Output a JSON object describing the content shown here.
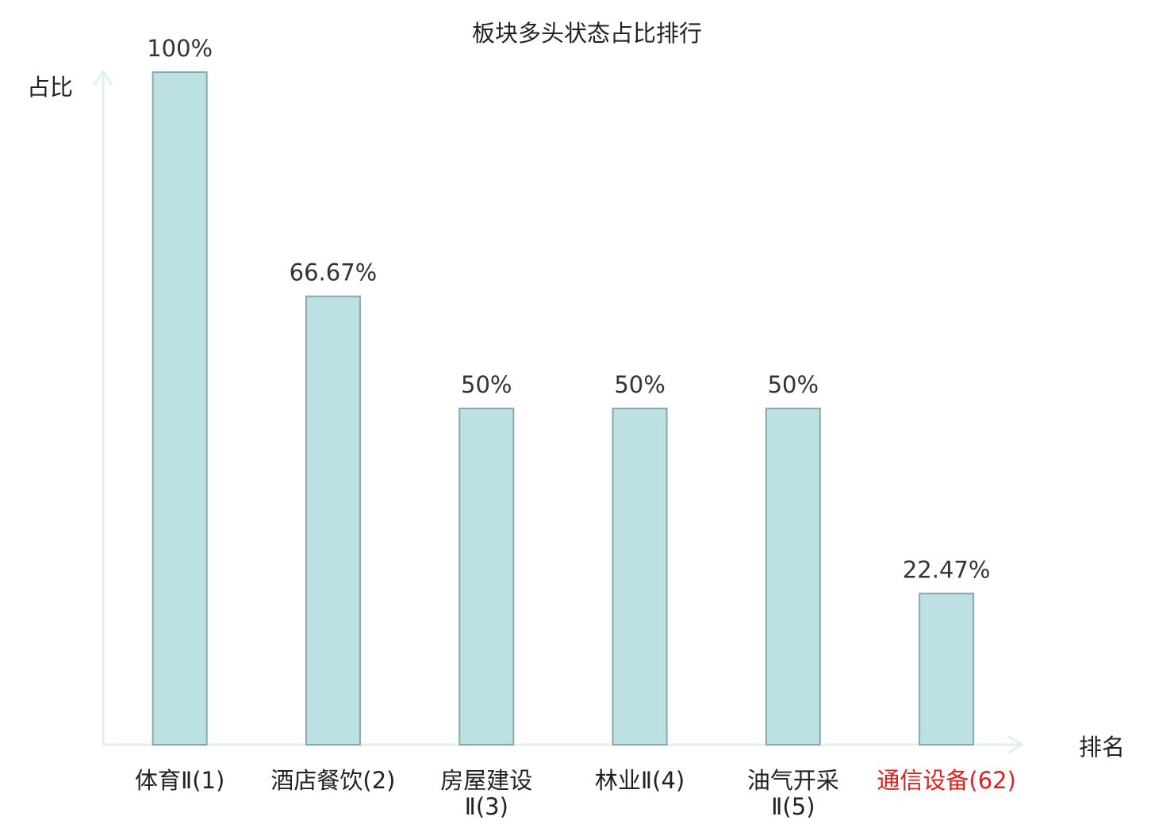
{
  "chart_data": {
    "type": "bar",
    "title": "板块多头状态占比排行",
    "ylabel": "占比",
    "xlabel": "排名",
    "categories": [
      {
        "name": "体育Ⅱ",
        "rank": "(1)",
        "lines": [
          "体育Ⅱ(1)"
        ],
        "highlight": false
      },
      {
        "name": "酒店餐饮",
        "rank": "(2)",
        "lines": [
          "酒店餐饮(2)"
        ],
        "highlight": false
      },
      {
        "name": "房屋建设Ⅱ",
        "rank": "(3)",
        "lines": [
          "房屋建设",
          "Ⅱ(3)"
        ],
        "highlight": false
      },
      {
        "name": "林业Ⅱ",
        "rank": "(4)",
        "lines": [
          "林业Ⅱ(4)"
        ],
        "highlight": false
      },
      {
        "name": "油气开采Ⅱ",
        "rank": "(5)",
        "lines": [
          "油气开采",
          "Ⅱ(5)"
        ],
        "highlight": false
      },
      {
        "name": "通信设备",
        "rank": "(62)",
        "lines": [
          "通信设备(62)"
        ],
        "highlight": true
      }
    ],
    "values": [
      100,
      66.67,
      50,
      50,
      50,
      22.47
    ],
    "value_labels": [
      "100%",
      "66.67%",
      "50%",
      "50%",
      "50%",
      "22.47%"
    ],
    "ylim": [
      0,
      100
    ],
    "grid": false,
    "colors": {
      "bar_fill": "#bde0e2",
      "bar_stroke": "#88a9ac",
      "axis": "#dff1ee",
      "label_text": "#222222",
      "value_text": "#333333",
      "highlight_text": "#e0201d"
    }
  }
}
